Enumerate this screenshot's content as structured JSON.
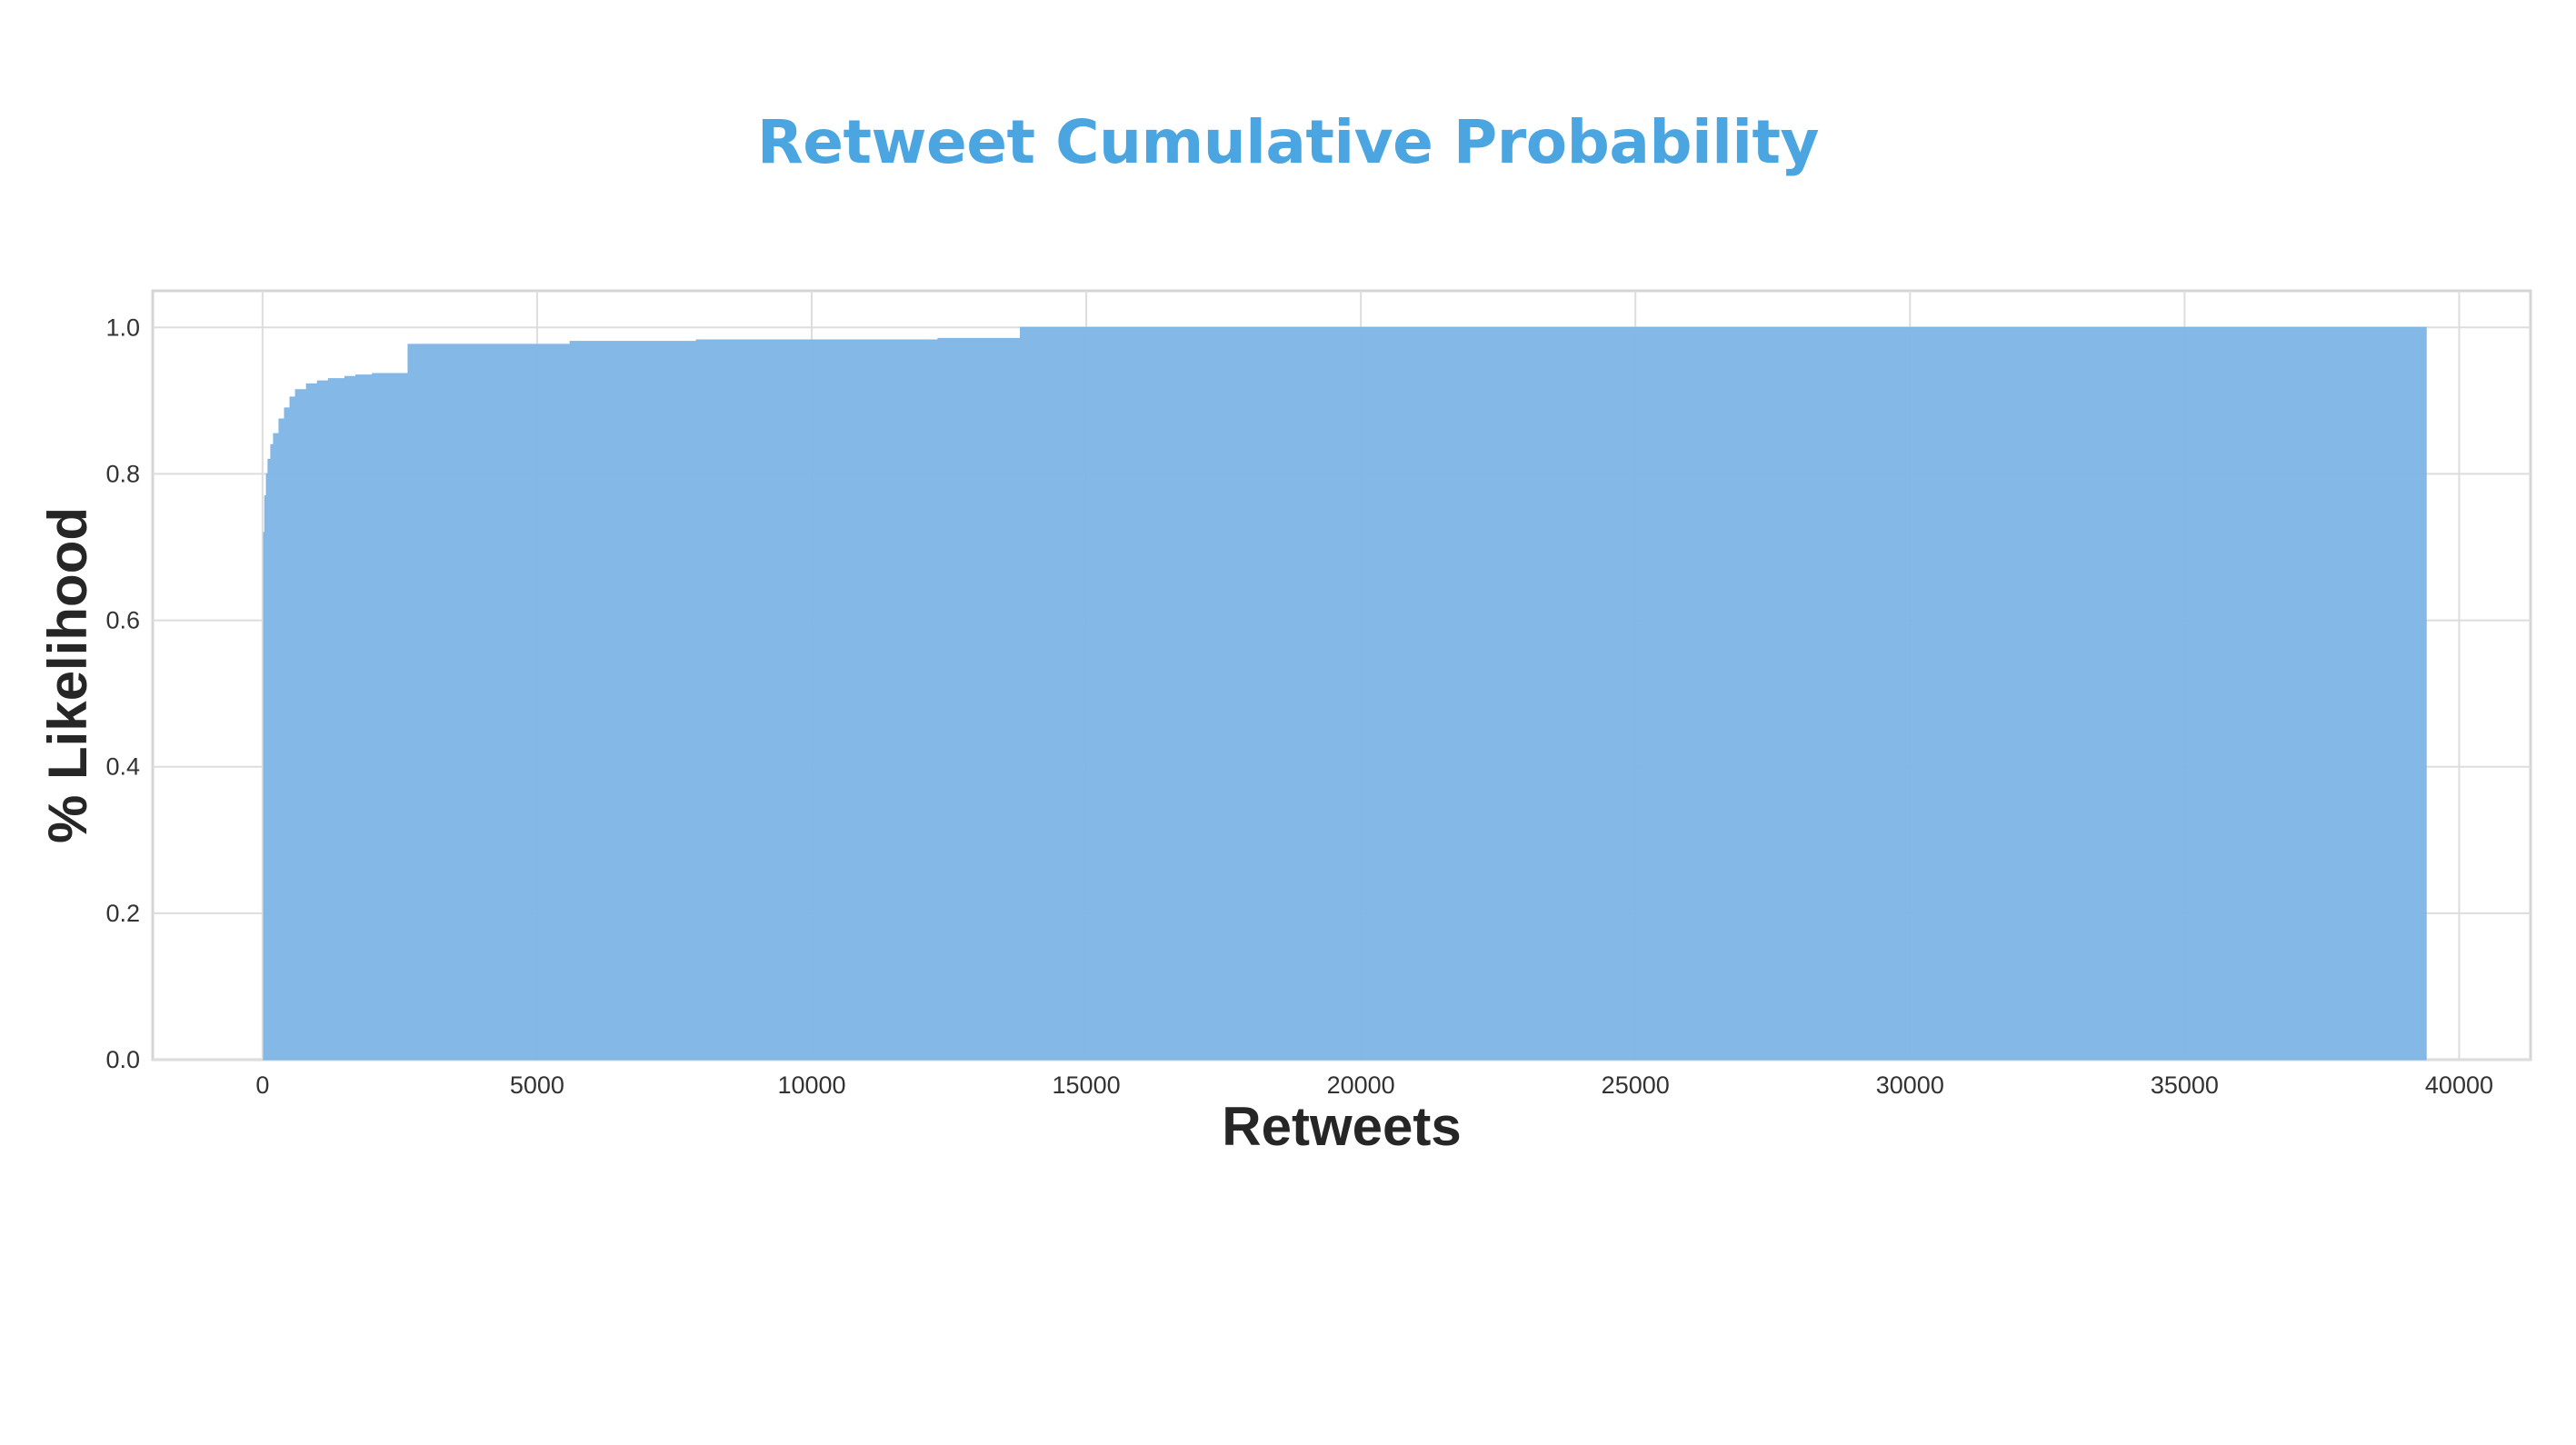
{
  "chart_data": {
    "type": "area",
    "title": "Retweet Cumulative Probability",
    "xlabel": "Retweets",
    "ylabel": "% Likelihood",
    "xlim": [
      -2000,
      41300
    ],
    "ylim": [
      0.0,
      1.05
    ],
    "xticks": [
      0,
      5000,
      10000,
      15000,
      20000,
      25000,
      30000,
      35000,
      40000
    ],
    "yticks": [
      0.0,
      0.2,
      0.4,
      0.6,
      0.8,
      1.0
    ],
    "xtick_labels": [
      "0",
      "5000",
      "10000",
      "15000",
      "20000",
      "25000",
      "30000",
      "35000",
      "40000"
    ],
    "ytick_labels": [
      "0.0",
      "0.2",
      "0.4",
      "0.6",
      "0.8",
      "1.0"
    ],
    "grid": true,
    "step": true,
    "fill_color": "#7db5e6",
    "series": [
      {
        "x": [
          0,
          20,
          40,
          70,
          100,
          150,
          200,
          300,
          400,
          500,
          600,
          800,
          1000,
          1200,
          1500,
          1700,
          2000,
          2650,
          5600,
          7900,
          12300,
          13800,
          39400
        ],
        "y": [
          0.0,
          0.72,
          0.77,
          0.8,
          0.82,
          0.84,
          0.855,
          0.875,
          0.89,
          0.905,
          0.915,
          0.923,
          0.927,
          0.93,
          0.933,
          0.935,
          0.937,
          0.977,
          0.981,
          0.983,
          0.985,
          1.0,
          1.0
        ]
      }
    ]
  }
}
